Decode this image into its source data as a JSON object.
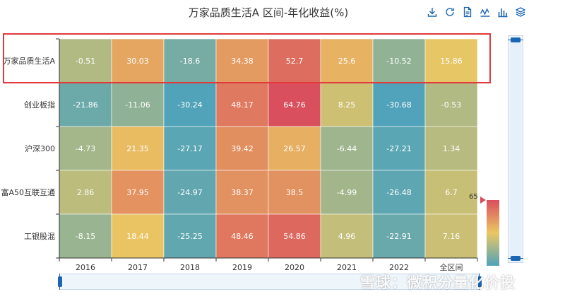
{
  "chart_title": "万家品质生活A 区间-年化收益(%)",
  "toolbox": [
    {
      "name": "download-icon"
    },
    {
      "name": "refresh-icon"
    },
    {
      "name": "data-view-icon"
    },
    {
      "name": "line-chart-icon"
    },
    {
      "name": "bar-chart-icon"
    },
    {
      "name": "stack-icon"
    }
  ],
  "visual_map": {
    "max_label": "65",
    "colors": [
      "#50a3ba",
      "#eac763",
      "#d94e5d"
    ]
  },
  "watermark": "雪球：微积分量化价投",
  "chart_data": {
    "type": "heatmap",
    "title": "万家品质生活A 区间-年化收益(%)",
    "x_categories": [
      "2016",
      "2017",
      "2018",
      "2019",
      "2020",
      "2021",
      "2022",
      "全区间"
    ],
    "y_categories": [
      "万家品质生活A",
      "创业板指",
      "沪深300",
      "富A50互联互通",
      "工银股混"
    ],
    "values": [
      [
        -0.51,
        30.03,
        -18.6,
        34.38,
        52.7,
        25.6,
        -10.52,
        15.86
      ],
      [
        -21.86,
        -11.06,
        -30.24,
        48.17,
        64.76,
        8.25,
        -30.68,
        -0.53
      ],
      [
        -4.73,
        21.35,
        -27.17,
        39.42,
        26.57,
        -6.44,
        -27.21,
        1.34
      ],
      [
        2.86,
        37.95,
        -24.97,
        38.37,
        38.5,
        -4.99,
        -26.48,
        6.7
      ],
      [
        -8.15,
        18.44,
        -25.25,
        48.46,
        54.86,
        4.96,
        -22.91,
        7.16
      ]
    ],
    "visual_map_max": 65,
    "color_scale": [
      "#50a3ba",
      "#eac763",
      "#d94e5d"
    ],
    "highlighted_row": "万家品质生活A"
  }
}
